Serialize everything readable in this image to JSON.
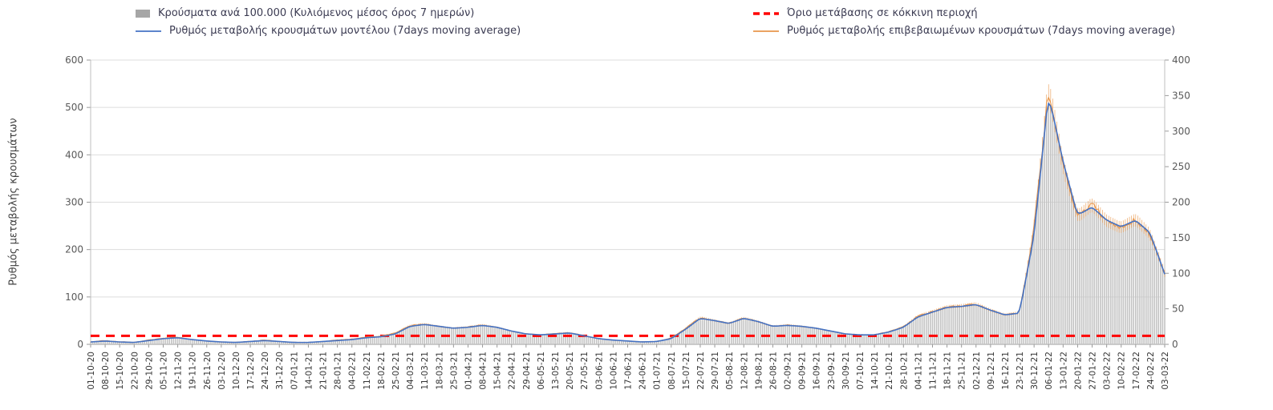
{
  "legend": {
    "items": [
      {
        "label": "Κρούσματα ανά 100.000 (Κυλιόμενος μέσος όρος 7 ημερών)"
      },
      {
        "label": "Όριο μετάβασης σε κόκκινη περιοχή"
      },
      {
        "label": "Ρυθμός μεταβολής κρουσμάτων μοντέλου (7days moving average)"
      },
      {
        "label": "Ρυθμός μεταβολής επιβεβαιωμένων κρουσμάτων (7days moving average)"
      }
    ]
  },
  "chart_data": {
    "type": "bar+line",
    "title": "",
    "ylabel_left": "Ρυθμός μεταβολής κρουσμάτων",
    "left_axis": {
      "min": 0,
      "max": 600,
      "ticks": [
        0,
        100,
        200,
        300,
        400,
        500,
        600
      ]
    },
    "right_axis": {
      "min": 0,
      "max": 400,
      "ticks": [
        0,
        50,
        100,
        150,
        200,
        250,
        300,
        350,
        400
      ]
    },
    "threshold": {
      "value": 18,
      "axis": "left",
      "color": "#FF0000"
    },
    "colors": {
      "bars": "#C3C3C3",
      "bars_legend": "#A6A6A6",
      "model": "#4472C4",
      "confirmed": "#E8964B"
    },
    "grid": true,
    "x_labels": [
      "01-10-20",
      "08-10-20",
      "15-10-20",
      "22-10-20",
      "29-10-20",
      "05-11-20",
      "12-11-20",
      "19-11-20",
      "26-11-20",
      "03-12-20",
      "10-12-20",
      "17-12-20",
      "24-12-20",
      "31-12-20",
      "07-01-21",
      "14-01-21",
      "21-01-21",
      "28-01-21",
      "04-02-21",
      "11-02-21",
      "18-02-21",
      "25-02-21",
      "04-03-21",
      "11-03-21",
      "18-03-21",
      "25-03-21",
      "01-04-21",
      "08-04-21",
      "15-04-21",
      "22-04-21",
      "29-04-21",
      "06-05-21",
      "13-05-21",
      "20-05-21",
      "27-05-21",
      "03-06-21",
      "10-06-21",
      "17-06-21",
      "24-06-21",
      "01-07-21",
      "08-07-21",
      "15-07-21",
      "22-07-21",
      "29-07-21",
      "05-08-21",
      "12-08-21",
      "19-08-21",
      "26-08-21",
      "02-09-21",
      "09-09-21",
      "16-09-21",
      "23-09-21",
      "30-09-21",
      "07-10-21",
      "14-10-21",
      "21-10-21",
      "28-10-21",
      "04-11-21",
      "11-11-21",
      "18-11-21",
      "25-11-21",
      "02-12-21",
      "09-12-21",
      "16-12-21",
      "23-12-21",
      "30-12-21",
      "06-01-22",
      "13-01-22",
      "20-01-22",
      "27-01-22",
      "03-02-22",
      "10-02-22",
      "17-02-22",
      "24-02-22",
      "03-03-22"
    ],
    "series": {
      "model": [
        5,
        7,
        5,
        4,
        8,
        12,
        14,
        10,
        7,
        5,
        4,
        6,
        8,
        6,
        4,
        4,
        6,
        8,
        10,
        14,
        16,
        22,
        38,
        42,
        38,
        34,
        36,
        40,
        36,
        28,
        22,
        20,
        22,
        24,
        18,
        12,
        9,
        7,
        5,
        6,
        12,
        32,
        55,
        50,
        44,
        55,
        48,
        38,
        40,
        38,
        34,
        28,
        22,
        20,
        20,
        26,
        36,
        58,
        68,
        78,
        80,
        84,
        72,
        62,
        66,
        230,
        530,
        385,
        272,
        290,
        262,
        248,
        262,
        235,
        148
      ],
      "confirmed": [
        5,
        8,
        5,
        4,
        9,
        13,
        15,
        10,
        7,
        5,
        4,
        6,
        9,
        6,
        4,
        4,
        6,
        9,
        11,
        15,
        17,
        24,
        40,
        43,
        38,
        34,
        37,
        41,
        36,
        28,
        22,
        20,
        23,
        25,
        18,
        12,
        9,
        7,
        5,
        6,
        13,
        34,
        57,
        50,
        44,
        56,
        48,
        38,
        41,
        38,
        34,
        28,
        22,
        20,
        20,
        27,
        37,
        60,
        69,
        79,
        81,
        85,
        72,
        62,
        67,
        245,
        545,
        375,
        268,
        296,
        260,
        246,
        264,
        232,
        150
      ],
      "cases_per_100k": [
        3,
        5,
        3,
        3,
        5,
        8,
        9,
        7,
        5,
        3,
        3,
        4,
        5,
        4,
        3,
        3,
        4,
        5,
        7,
        9,
        11,
        15,
        25,
        28,
        25,
        23,
        24,
        27,
        24,
        19,
        15,
        13,
        15,
        16,
        12,
        8,
        6,
        5,
        3,
        4,
        8,
        21,
        37,
        33,
        29,
        37,
        32,
        25,
        27,
        25,
        23,
        19,
        15,
        13,
        13,
        17,
        24,
        39,
        45,
        52,
        53,
        56,
        48,
        41,
        44,
        153,
        353,
        257,
        181,
        193,
        175,
        165,
        175,
        157,
        99
      ]
    }
  }
}
